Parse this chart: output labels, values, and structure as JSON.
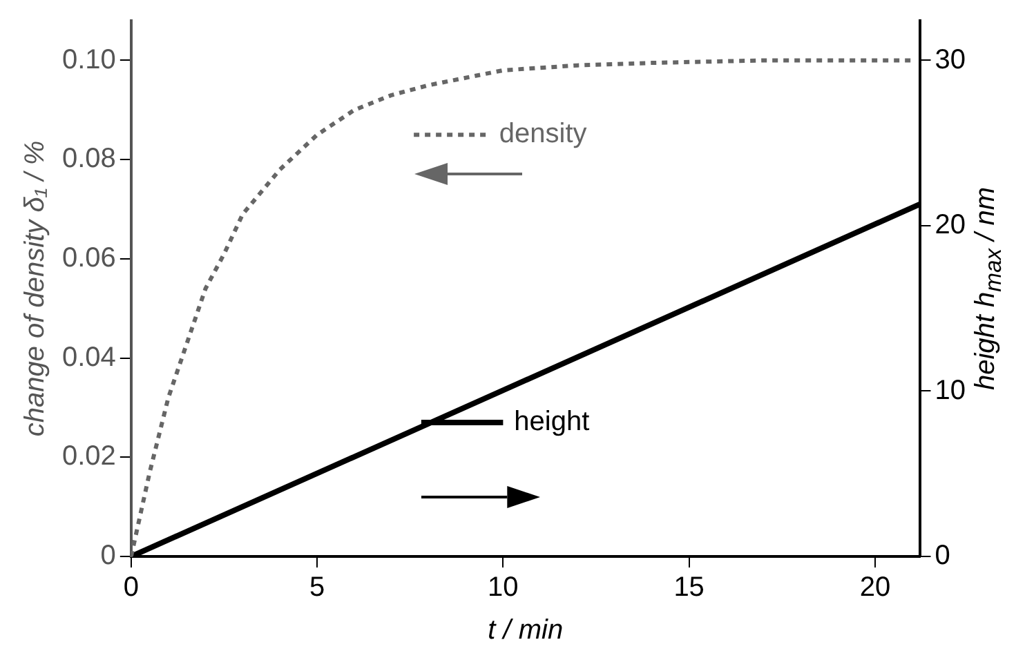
{
  "chart_data": {
    "type": "line",
    "xlabel": "t / min",
    "ylabel": "change of density δ₁ / %",
    "y2label": "height h$_{max}$ / nm",
    "xlim": [
      0,
      21.2
    ],
    "xticks": [
      0,
      5,
      10,
      15,
      20
    ],
    "ylim": [
      0,
      0.108
    ],
    "yticks": [
      {
        "value": 0,
        "label": "0"
      },
      {
        "value": 0.02,
        "label": "0.02"
      },
      {
        "value": 0.04,
        "label": "0.04"
      },
      {
        "value": 0.06,
        "label": "0.06"
      },
      {
        "value": 0.08,
        "label": "0.08"
      },
      {
        "value": 0.1,
        "label": "0.10"
      }
    ],
    "y2lim": [
      0,
      32.4
    ],
    "y2ticks": [
      0,
      10,
      20,
      30
    ],
    "grid": false,
    "marker": "none",
    "legend": "center",
    "series": [
      {
        "name": "density",
        "color": "#666666",
        "line_style": "dotted",
        "x": [
          0,
          0.5,
          1,
          1.5,
          2,
          2.5,
          3,
          4,
          5,
          6,
          7,
          8,
          10,
          12,
          14,
          17,
          21
        ],
        "values": [
          0,
          0.017,
          0.032,
          0.043,
          0.054,
          0.061,
          0.069,
          0.078,
          0.085,
          0.09,
          0.093,
          0.095,
          0.098,
          0.099,
          0.0995,
          0.1,
          0.1
        ]
      },
      {
        "name": "height",
        "color": "#000000",
        "line_style": "solid",
        "axis": "y2",
        "x": [
          0,
          21.2
        ],
        "values": [
          0,
          21.3
        ]
      }
    ]
  }
}
